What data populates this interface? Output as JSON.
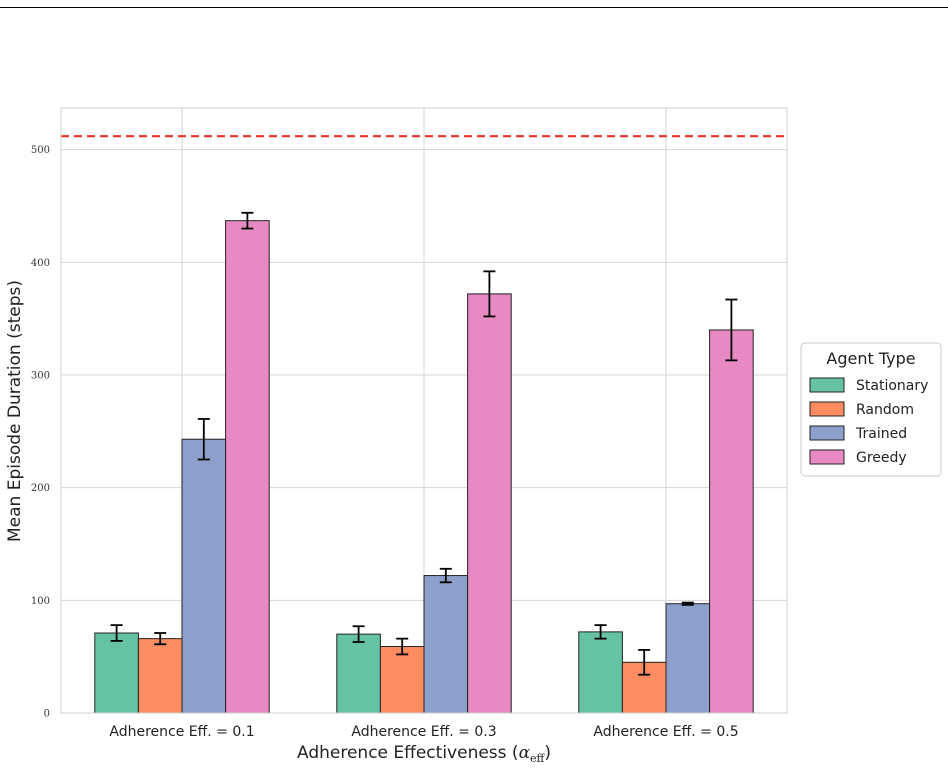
{
  "chart_data": {
    "type": "bar",
    "xlabel_main": "Adherence Effectiveness (",
    "xlabel_symbol": "α",
    "xlabel_sub": "eff",
    "xlabel_close": ")",
    "ylabel": "Mean Episode Duration (steps)",
    "categories": [
      "Adherence Eff. = 0.1",
      "Adherence Eff. = 0.3",
      "Adherence Eff. = 0.5"
    ],
    "ylim": [
      0,
      537
    ],
    "yticks": [
      0,
      100,
      200,
      300,
      400,
      500
    ],
    "grid": true,
    "reference_line": {
      "value": 512,
      "color": "#e8332b",
      "style": "dashed"
    },
    "legend": {
      "title": "Agent Type",
      "placement": "right"
    },
    "series": [
      {
        "name": "Stationary",
        "color": "#66c2a5",
        "values": [
          71,
          70,
          72
        ],
        "errors": [
          7,
          7,
          6
        ]
      },
      {
        "name": "Random",
        "color": "#fc8d62",
        "values": [
          66,
          59,
          45
        ],
        "errors": [
          5,
          7,
          11
        ]
      },
      {
        "name": "Trained",
        "color": "#8da0cb",
        "values": [
          243,
          122,
          97
        ],
        "errors": [
          18,
          6,
          1
        ]
      },
      {
        "name": "Greedy",
        "color": "#e78ac3",
        "values": [
          437,
          372,
          340
        ],
        "errors": [
          7,
          20,
          27
        ]
      }
    ]
  }
}
